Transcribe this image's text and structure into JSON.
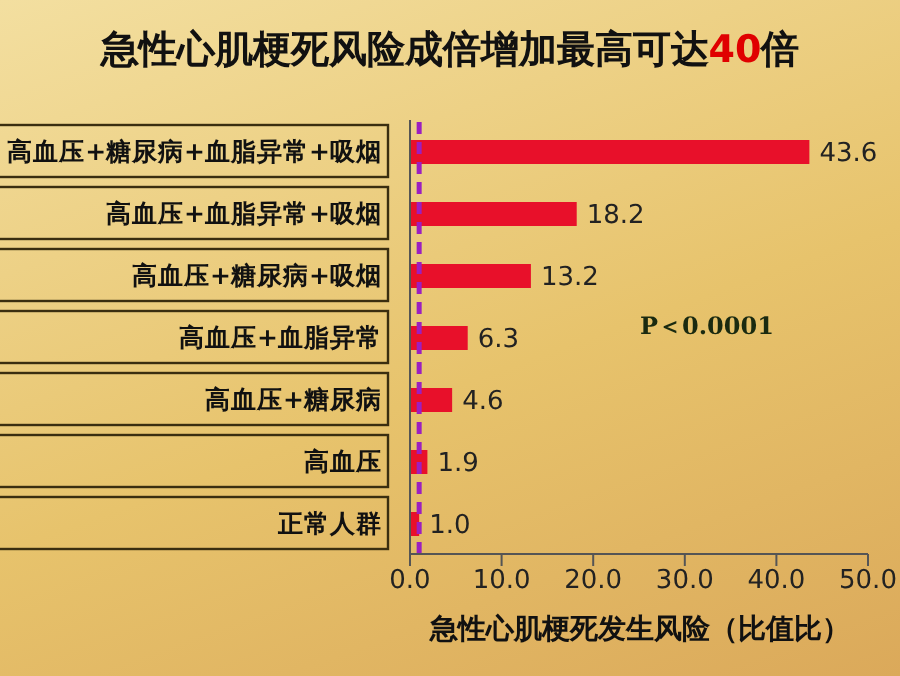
{
  "chart_data": {
    "type": "bar",
    "orientation": "horizontal",
    "title": "急性心肌梗死风险成倍增加最高可达40倍",
    "xlabel": "急性心肌梗死发生风险（比值比）",
    "categories": [
      "高血压+糖尿病+血脂异常+吸烟",
      "高血压+血脂异常+吸烟",
      "高血压+糖尿病+吸烟",
      "高血压+血脂异常",
      "高血压+糖尿病",
      "高血压",
      "正常人群"
    ],
    "values": [
      43.6,
      18.2,
      13.2,
      6.3,
      4.6,
      1.9,
      1.0
    ],
    "value_labels": [
      "43.6",
      "18.2",
      "13.2",
      "6.3",
      "4.6",
      "1.9",
      "1.0"
    ],
    "color": "#e8102a",
    "xlim": [
      0,
      50
    ],
    "xticks": [
      {
        "value": 0,
        "label": "0.0"
      },
      {
        "value": 10,
        "label": "10.0"
      },
      {
        "value": 20,
        "label": "20.0"
      },
      {
        "value": 30,
        "label": "30.0"
      },
      {
        "value": 40,
        "label": "40.0"
      },
      {
        "value": 50,
        "label": "50.0"
      }
    ],
    "grid": false,
    "legend": false,
    "ref_lines": [
      {
        "axis": "x",
        "value": 1.0,
        "color": "#9b1fc0",
        "line_style": "dashed"
      }
    ],
    "annotations": [
      "P＜0.0001"
    ]
  }
}
